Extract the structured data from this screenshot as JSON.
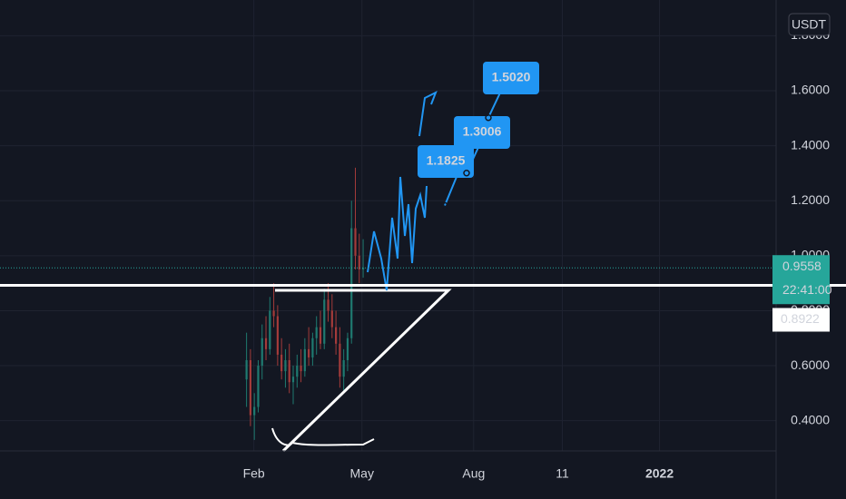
{
  "chart_data": {
    "type": "candlestick",
    "currency": "USDT",
    "x": [
      25,
      28.2,
      31.4,
      34.6,
      37.8,
      41,
      44.2,
      47.4,
      50.6,
      53.8,
      57,
      60.2,
      63.4,
      66.6,
      69.8,
      73,
      76.2,
      79.4,
      82.6,
      85.8,
      89,
      92.2,
      95.4,
      98.6,
      101.8,
      105,
      108.2,
      111.4,
      114.6,
      117.8,
      121
    ],
    "open": [
      0.55,
      0.62,
      0.42,
      0.45,
      0.6,
      0.7,
      0.66,
      0.8,
      0.78,
      0.64,
      0.58,
      0.62,
      0.54,
      0.56,
      0.6,
      0.58,
      0.66,
      0.63,
      0.7,
      0.74,
      0.68,
      0.84,
      0.8,
      0.74,
      0.68,
      0.56,
      0.62,
      0.7,
      1.1,
      1.0,
      0.95
    ],
    "high": [
      0.72,
      0.66,
      0.5,
      0.62,
      0.75,
      0.78,
      0.85,
      0.9,
      0.82,
      0.7,
      0.66,
      0.68,
      0.6,
      0.64,
      0.66,
      0.7,
      0.74,
      0.72,
      0.78,
      0.8,
      0.88,
      0.9,
      0.86,
      0.8,
      0.74,
      0.66,
      0.72,
      1.2,
      1.32,
      1.08,
      1.06
    ],
    "low": [
      0.45,
      0.38,
      0.33,
      0.43,
      0.55,
      0.62,
      0.64,
      0.74,
      0.6,
      0.55,
      0.52,
      0.5,
      0.46,
      0.52,
      0.54,
      0.56,
      0.6,
      0.6,
      0.64,
      0.66,
      0.66,
      0.76,
      0.7,
      0.64,
      0.52,
      0.5,
      0.58,
      0.68,
      0.95,
      0.9,
      0.92
    ],
    "close": [
      0.62,
      0.42,
      0.45,
      0.6,
      0.7,
      0.66,
      0.8,
      0.78,
      0.64,
      0.58,
      0.62,
      0.54,
      0.56,
      0.6,
      0.58,
      0.66,
      0.63,
      0.7,
      0.74,
      0.68,
      0.84,
      0.8,
      0.74,
      0.68,
      0.56,
      0.62,
      0.7,
      1.1,
      1.0,
      0.95,
      0.9558
    ],
    "up_color": "#1f7a70",
    "down_color": "#a33b3a",
    "xlim": [
      -178,
      461
    ],
    "xticks": [
      {
        "value": 31,
        "label": "Feb"
      },
      {
        "value": 120,
        "label": "May"
      },
      {
        "value": 212,
        "label": "Aug"
      },
      {
        "value": 285,
        "label": "11"
      },
      {
        "value": 365,
        "label": "2022"
      }
    ],
    "ylim": [
      0.29,
      1.93
    ],
    "yticks": [
      {
        "value": 0.4,
        "label": "0.4000"
      },
      {
        "value": 0.6,
        "label": "0.6000"
      },
      {
        "value": 0.8,
        "label": "0.8000"
      },
      {
        "value": 1.0,
        "label": "1.0000"
      },
      {
        "value": 1.2,
        "label": "1.2000"
      },
      {
        "value": 1.4,
        "label": "1.4000"
      },
      {
        "value": 1.6,
        "label": "1.6000"
      },
      {
        "value": 1.8,
        "label": "1.8000"
      }
    ],
    "grid": true,
    "last_price": {
      "value": 0.9558,
      "label": "0.9558",
      "countdown": "22:41:00",
      "color": "#26a69a"
    },
    "level": {
      "value": 0.8922,
      "label": "0.8922"
    },
    "targets": [
      {
        "value": 1.1825,
        "label": "1.1825"
      },
      {
        "value": 1.3006,
        "label": "1.3006"
      },
      {
        "value": 1.502,
        "label": "1.5020"
      }
    ]
  }
}
